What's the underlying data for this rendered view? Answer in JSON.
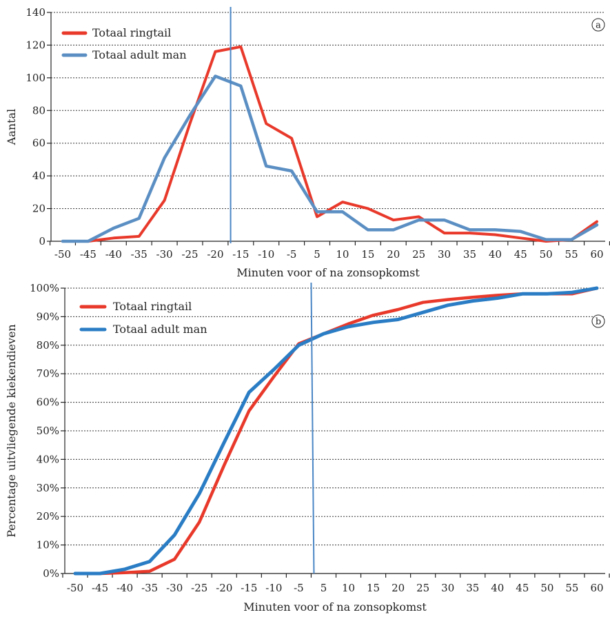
{
  "chart_data": [
    {
      "panel": "a",
      "type": "line",
      "ylabel": "Aantal",
      "xlabel": "Minuten voor of na zonsopkomst",
      "ylim": [
        0,
        140
      ],
      "yticks": [
        "0",
        "20",
        "40",
        "60",
        "80",
        "100",
        "120",
        "140"
      ],
      "yticks_values": [
        0,
        20,
        40,
        60,
        80,
        100,
        120,
        140
      ],
      "categories": [
        "-50",
        "-45",
        "-40",
        "-35",
        "-30",
        "-25",
        "-20",
        "-15",
        "-10",
        "-5",
        "5",
        "10",
        "15",
        "20",
        "25",
        "30",
        "35",
        "40",
        "45",
        "50",
        "55",
        "60"
      ],
      "grid": true,
      "legend_position": "top-left",
      "badge": "a",
      "marker_line_x": -17,
      "series": [
        {
          "name": "Totaal ringtail",
          "color": "#e8392b",
          "values": [
            0,
            0,
            2,
            3,
            25,
            72,
            116,
            119,
            72,
            63,
            15,
            24,
            20,
            13,
            15,
            5,
            5,
            4,
            2,
            0,
            1,
            12
          ]
        },
        {
          "name": "Totaal adult man",
          "color": "#5b8fc3",
          "values": [
            0,
            0,
            8,
            14,
            51,
            77,
            101,
            95,
            46,
            43,
            18,
            18,
            7,
            7,
            13,
            13,
            7,
            7,
            6,
            1,
            1,
            10
          ]
        }
      ]
    },
    {
      "panel": "b",
      "type": "line",
      "ylabel": "Percentage uitvliegende kiekendieven",
      "xlabel": "Minuten voor of na zonsopkomst",
      "ylim": [
        0,
        100
      ],
      "yticks": [
        "0%",
        "10%",
        "20%",
        "30%",
        "40%",
        "50%",
        "60%",
        "70%",
        "80%",
        "90%",
        "100%"
      ],
      "yticks_values": [
        0,
        10,
        20,
        30,
        40,
        50,
        60,
        70,
        80,
        90,
        100
      ],
      "categories": [
        "-50",
        "-45",
        "-40",
        "-35",
        "-30",
        "-25",
        "-20",
        "-15",
        "-10",
        "-5",
        "5",
        "10",
        "15",
        "20",
        "25",
        "30",
        "35",
        "40",
        "45",
        "50",
        "55",
        "60"
      ],
      "grid": true,
      "legend_position": "top-left",
      "badge": "b",
      "marker_line_x": 0,
      "series": [
        {
          "name": "Totaal ringtail",
          "color": "#e8392b",
          "values": [
            0,
            0,
            0.3,
            0.8,
            5,
            18,
            38,
            57,
            69,
            80.5,
            84,
            87.5,
            90.5,
            92.5,
            95,
            96,
            96.8,
            97.5,
            98,
            98,
            98,
            100
          ]
        },
        {
          "name": "Totaal adult man",
          "color": "#2a7dc4",
          "values": [
            0,
            0,
            1.5,
            4.2,
            13.5,
            28,
            46,
            63.5,
            71.5,
            80,
            84,
            86.5,
            88,
            89,
            91.5,
            94,
            95.5,
            96.5,
            98,
            98,
            98.5,
            100
          ]
        }
      ]
    }
  ]
}
